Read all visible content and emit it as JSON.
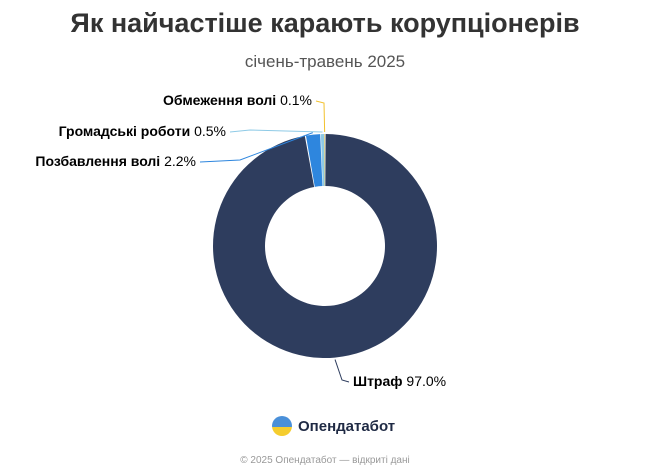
{
  "header": {
    "title": "Як найчастіше карають корупціонерів",
    "subtitle": "січень-травень 2025"
  },
  "chart_data": {
    "type": "pie",
    "donut": true,
    "title": "Як найчастіше карають корупціонерів",
    "subtitle": "січень-травень 2025",
    "slices": [
      {
        "label": "Штраф",
        "value": 97.0,
        "display": "97.0%",
        "color": "#2e3d5e"
      },
      {
        "label": "Позбавлення волі",
        "value": 2.2,
        "display": "2.2%",
        "color": "#2e86de"
      },
      {
        "label": "Громадські роботи",
        "value": 0.5,
        "display": "0.5%",
        "color": "#8ecae6"
      },
      {
        "label": "Обмеження волі",
        "value": 0.1,
        "display": "0.1%",
        "color": "#f2c12e"
      }
    ]
  },
  "brand": {
    "name": "Опендатабот",
    "logo_icon": "opendatabot-logo-icon",
    "logo_colors": [
      "#4a90d9",
      "#f5cd2e"
    ]
  },
  "footer": {
    "text": "© 2025 Опендатабот — відкриті дані"
  }
}
